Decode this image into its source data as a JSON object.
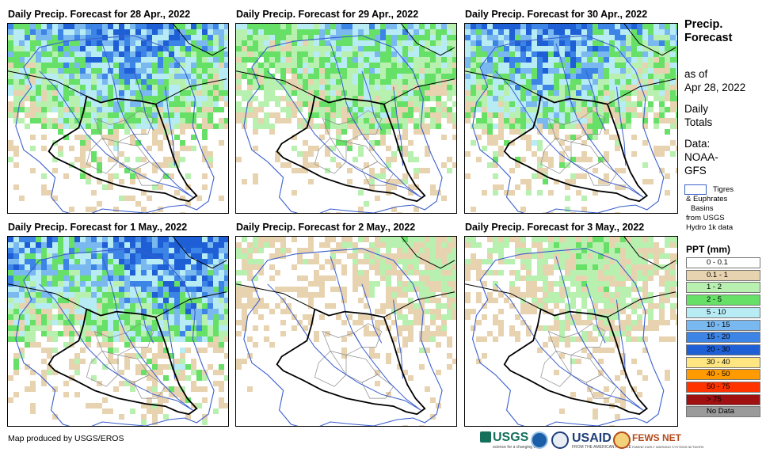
{
  "panels": [
    {
      "title": "Daily Precip. Forecast for 28 Apr., 2022",
      "seed": 11,
      "wet": 0.85,
      "north": 0.95
    },
    {
      "title": "Daily Precip. Forecast for 29 Apr., 2022",
      "seed": 23,
      "wet": 0.75,
      "north": 0.8
    },
    {
      "title": "Daily Precip. Forecast for 30 Apr., 2022",
      "seed": 37,
      "wet": 0.9,
      "north": 0.9
    },
    {
      "title": "Daily Precip. Forecast for 1 May., 2022",
      "seed": 41,
      "wet": 0.9,
      "north": 1.0
    },
    {
      "title": "Daily Precip. Forecast for 2 May., 2022",
      "seed": 53,
      "wet": 0.45,
      "north": 0.6
    },
    {
      "title": "Daily Precip. Forecast for 3 May., 2022",
      "seed": 67,
      "wet": 0.5,
      "north": 0.65
    }
  ],
  "side": {
    "heading_line1": "Precip.",
    "heading_line2": "Forecast",
    "asof_line1": "as of",
    "asof_line2": "Apr 28, 2022",
    "daily_line1": "Daily",
    "daily_line2": "Totals",
    "data_line1": "Data:",
    "data_line2": "NOAA-",
    "data_line3": "GFS"
  },
  "basin_note": {
    "line1": "Tigres",
    "line2": "& Euphrates",
    "line3": "Basins",
    "line4": "from USGS",
    "line5": "Hydro 1k data"
  },
  "legend": {
    "title": "PPT (mm)",
    "items": [
      {
        "label": "0 - 0.1",
        "color": "#ffffff"
      },
      {
        "label": "0.1 - 1",
        "color": "#e8d3b0"
      },
      {
        "label": "1 - 2",
        "color": "#b8f0b0"
      },
      {
        "label": "2 - 5",
        "color": "#66e066"
      },
      {
        "label": "5 - 10",
        "color": "#b8ecf5"
      },
      {
        "label": "10 - 15",
        "color": "#7ab8f0"
      },
      {
        "label": "15 - 20",
        "color": "#3c84e6"
      },
      {
        "label": "20 - 30",
        "color": "#1f5fd6"
      },
      {
        "label": "30 - 40",
        "color": "#ffe680"
      },
      {
        "label": "40 - 50",
        "color": "#ff9a00"
      },
      {
        "label": "50 - 75",
        "color": "#ff3300"
      },
      {
        "label": "> 75",
        "color": "#a01010"
      },
      {
        "label": "No Data",
        "color": "#9a9a9a"
      }
    ]
  },
  "credit": "Map produced by USGS/EROS",
  "logos": {
    "usgs": "USGS",
    "usgs_tagline": "science for a changing world",
    "usaid": "USAID",
    "usaid_tagline": "FROM THE AMERICAN PEOPLE",
    "fews": "FEWS NET",
    "fews_tagline": "FAMINE EARLY WARNING SYSTEMS NETWORK"
  },
  "colors": {
    "basin_line": "#3a5fcd",
    "country_border": "#000000",
    "province_border": "#8a8a8a"
  }
}
